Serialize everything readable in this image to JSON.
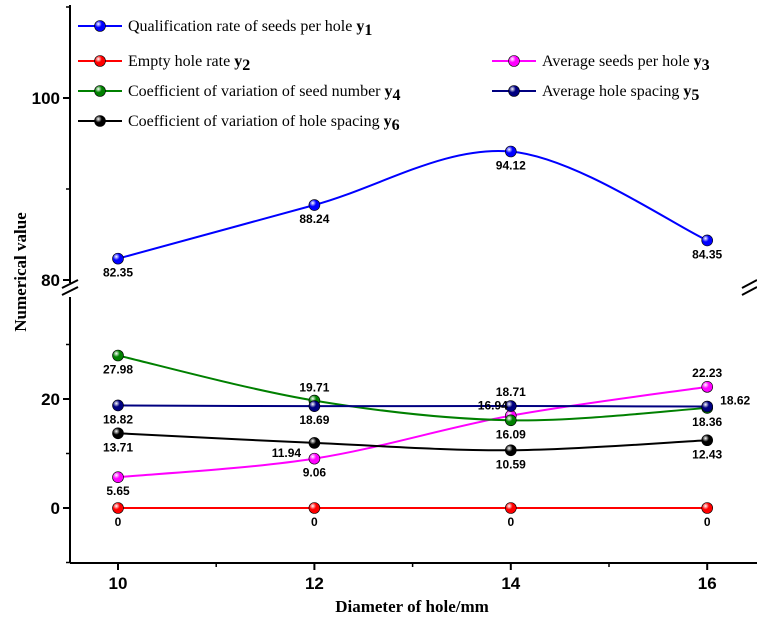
{
  "chart_data": {
    "type": "line",
    "xlabel": "Diameter of hole/mm",
    "ylabel": "Numerical value",
    "x": [
      10,
      12,
      14,
      16
    ],
    "x_ticks": [
      "10",
      "12",
      "14",
      "16"
    ],
    "y_ticks": [
      {
        "value": 0,
        "label": "0"
      },
      {
        "value": 20,
        "label": "20"
      },
      {
        "value": 80,
        "label": "80"
      },
      {
        "value": 100,
        "label": "100"
      }
    ],
    "axis_break": {
      "lower_segment": [
        -10,
        35
      ],
      "upper_segment": [
        80,
        112
      ]
    },
    "grid": false,
    "legend_placement": "top",
    "series": [
      {
        "name": "Qualification rate of seeds per hole ",
        "sub": "y",
        "subscript": "1",
        "color": "#0000ff",
        "values": [
          82.35,
          88.24,
          94.12,
          84.35
        ],
        "labels": [
          "82.35",
          "88.24",
          "94.12",
          "84.35"
        ]
      },
      {
        "name": "Empty hole rate ",
        "sub": "y",
        "subscript": "2",
        "color": "#ff0000",
        "values": [
          0,
          0,
          0,
          0
        ],
        "labels": [
          "0",
          "0",
          "0",
          "0"
        ]
      },
      {
        "name": "Average seeds per hole ",
        "sub": "y",
        "subscript": "3",
        "color": "#ff00ff",
        "values": [
          5.65,
          9.06,
          16.94,
          22.23
        ],
        "labels": [
          "5.65",
          "9.06",
          "16.94",
          "22.23"
        ]
      },
      {
        "name": "Coefficient of variation of seed number ",
        "sub": "y",
        "subscript": "4",
        "color": "#008000",
        "values": [
          27.98,
          19.71,
          16.09,
          18.36
        ],
        "labels": [
          "27.98",
          "19.71",
          "16.09",
          "18.36"
        ]
      },
      {
        "name": "Average hole spacing ",
        "sub": "y",
        "subscript": "5",
        "color": "#000080",
        "values": [
          18.82,
          18.69,
          18.71,
          18.62
        ],
        "labels": [
          "18.82",
          "18.69",
          "18.71",
          "18.62"
        ]
      },
      {
        "name": "Coefficient of variation of hole spacing ",
        "sub": "y",
        "subscript": "6",
        "color": "#000000",
        "values": [
          13.71,
          11.94,
          10.59,
          12.43
        ],
        "labels": [
          "13.71",
          "11.94",
          "10.59",
          "12.43"
        ]
      }
    ]
  }
}
